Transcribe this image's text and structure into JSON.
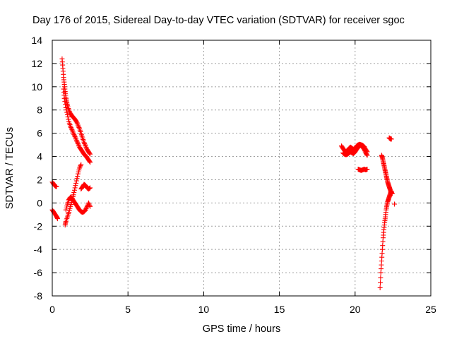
{
  "chart_data": {
    "type": "scatter",
    "title": "Day 176 of 2015, Sidereal Day-to-day VTEC variation (SDTVAR) for receiver sgoc",
    "xlabel": "GPS time / hours",
    "ylabel": "SDTVAR / TECUs",
    "xlim": [
      0,
      25
    ],
    "ylim": [
      -8,
      14
    ],
    "xticks": [
      0,
      5,
      10,
      15,
      20,
      25
    ],
    "yticks": [
      -8,
      -6,
      -4,
      -2,
      0,
      2,
      4,
      6,
      8,
      10,
      12,
      14
    ],
    "grid": true,
    "marker": "plus",
    "color": "#ff0000",
    "series": [
      {
        "name": "SDTVAR",
        "segments": [
          [
            [
              0.0,
              1.8
            ],
            [
              0.1,
              1.6
            ],
            [
              0.2,
              1.45
            ],
            [
              0.28,
              1.4
            ]
          ],
          [
            [
              0.0,
              -0.6
            ],
            [
              0.1,
              -0.8
            ],
            [
              0.2,
              -1.0
            ],
            [
              0.3,
              -1.2
            ],
            [
              0.35,
              -1.35
            ]
          ],
          [
            [
              0.65,
              12.4
            ],
            [
              0.7,
              11.6
            ],
            [
              0.75,
              10.8
            ],
            [
              0.8,
              10.2
            ],
            [
              0.85,
              9.6
            ],
            [
              0.9,
              9.1
            ],
            [
              0.95,
              8.7
            ],
            [
              1.0,
              8.4
            ],
            [
              1.1,
              8.0
            ],
            [
              1.2,
              7.7
            ],
            [
              1.3,
              7.5
            ],
            [
              1.4,
              7.35
            ],
            [
              1.5,
              7.2
            ],
            [
              1.6,
              7.0
            ],
            [
              1.7,
              6.7
            ],
            [
              1.8,
              6.4
            ],
            [
              1.9,
              6.0
            ],
            [
              2.0,
              5.6
            ],
            [
              2.1,
              5.2
            ],
            [
              2.2,
              4.9
            ],
            [
              2.3,
              4.6
            ],
            [
              2.4,
              4.4
            ],
            [
              2.5,
              4.2
            ]
          ],
          [
            [
              0.75,
              9.8
            ],
            [
              0.8,
              9.0
            ],
            [
              0.9,
              8.2
            ],
            [
              1.0,
              7.6
            ],
            [
              1.1,
              7.0
            ],
            [
              1.2,
              6.6
            ],
            [
              1.3,
              6.3
            ],
            [
              1.4,
              6.0
            ],
            [
              1.5,
              5.7
            ],
            [
              1.6,
              5.4
            ],
            [
              1.7,
              5.1
            ],
            [
              1.8,
              4.8
            ],
            [
              1.9,
              4.6
            ],
            [
              2.0,
              4.4
            ],
            [
              2.1,
              4.2
            ],
            [
              2.2,
              4.05
            ],
            [
              2.3,
              3.9
            ],
            [
              2.4,
              3.7
            ],
            [
              2.5,
              3.5
            ]
          ],
          [
            [
              0.85,
              -1.9
            ],
            [
              0.9,
              -1.6
            ],
            [
              1.0,
              -1.2
            ],
            [
              1.1,
              -0.8
            ],
            [
              1.2,
              -0.3
            ],
            [
              1.3,
              0.2
            ],
            [
              1.4,
              0.7
            ],
            [
              1.5,
              1.3
            ],
            [
              1.6,
              1.9
            ],
            [
              1.7,
              2.5
            ],
            [
              1.8,
              3.0
            ],
            [
              1.9,
              3.3
            ]
          ],
          [
            [
              0.9,
              -0.6
            ],
            [
              1.0,
              -0.1
            ],
            [
              1.1,
              0.3
            ],
            [
              1.2,
              0.5
            ],
            [
              1.3,
              0.4
            ],
            [
              1.4,
              0.2
            ],
            [
              1.5,
              0.0
            ],
            [
              1.6,
              -0.2
            ],
            [
              1.7,
              -0.4
            ],
            [
              1.8,
              -0.6
            ],
            [
              1.9,
              -0.75
            ],
            [
              2.0,
              -0.8
            ],
            [
              2.1,
              -0.75
            ],
            [
              2.2,
              -0.6
            ],
            [
              2.3,
              -0.3
            ],
            [
              2.4,
              0.0
            ],
            [
              2.5,
              -0.3
            ]
          ],
          [
            [
              1.9,
              1.2
            ],
            [
              2.0,
              1.4
            ],
            [
              2.1,
              1.6
            ],
            [
              2.2,
              1.5
            ],
            [
              2.3,
              1.3
            ],
            [
              2.4,
              1.2
            ],
            [
              2.5,
              1.3
            ]
          ],
          [
            [
              19.1,
              4.9
            ],
            [
              19.2,
              4.7
            ],
            [
              19.3,
              4.5
            ],
            [
              19.4,
              4.4
            ],
            [
              19.5,
              4.5
            ],
            [
              19.6,
              4.7
            ],
            [
              19.7,
              4.8
            ],
            [
              19.8,
              4.7
            ],
            [
              19.9,
              4.6
            ],
            [
              20.0,
              4.7
            ],
            [
              20.1,
              4.9
            ],
            [
              20.2,
              5.0
            ],
            [
              20.3,
              5.05
            ],
            [
              20.4,
              5.0
            ],
            [
              20.5,
              4.8
            ],
            [
              20.6,
              4.6
            ],
            [
              20.7,
              4.3
            ],
            [
              20.8,
              4.1
            ]
          ],
          [
            [
              19.2,
              4.3
            ],
            [
              19.3,
              4.2
            ],
            [
              19.4,
              4.15
            ],
            [
              19.5,
              4.2
            ],
            [
              19.6,
              4.3
            ],
            [
              19.7,
              4.4
            ],
            [
              19.8,
              4.3
            ],
            [
              19.9,
              4.25
            ],
            [
              20.0,
              4.4
            ],
            [
              20.1,
              4.6
            ],
            [
              20.2,
              4.8
            ],
            [
              20.3,
              4.9
            ],
            [
              20.4,
              5.0
            ],
            [
              20.5,
              4.95
            ],
            [
              20.6,
              4.85
            ],
            [
              20.7,
              4.6
            ],
            [
              20.8,
              4.4
            ]
          ],
          [
            [
              20.2,
              2.9
            ],
            [
              20.3,
              2.85
            ],
            [
              20.4,
              2.8
            ],
            [
              20.5,
              2.85
            ],
            [
              20.6,
              2.9
            ],
            [
              20.7,
              2.85
            ],
            [
              20.8,
              2.9
            ]
          ],
          [
            [
              21.65,
              -7.3
            ],
            [
              21.7,
              -6.0
            ],
            [
              21.75,
              -5.0
            ],
            [
              21.8,
              -4.0
            ],
            [
              21.85,
              -3.0
            ],
            [
              21.9,
              -2.3
            ],
            [
              21.95,
              -1.7
            ],
            [
              22.0,
              -1.2
            ],
            [
              22.05,
              -0.6
            ],
            [
              22.1,
              -0.2
            ],
            [
              22.15,
              0.1
            ],
            [
              22.2,
              0.3
            ],
            [
              22.25,
              0.5
            ],
            [
              22.3,
              0.7
            ],
            [
              22.35,
              0.9
            ],
            [
              22.4,
              1.0
            ]
          ],
          [
            [
              21.75,
              4.1
            ],
            [
              21.8,
              3.9
            ],
            [
              21.85,
              3.6
            ],
            [
              21.9,
              3.3
            ],
            [
              21.95,
              3.0
            ],
            [
              22.0,
              2.7
            ],
            [
              22.05,
              2.4
            ],
            [
              22.1,
              2.1
            ],
            [
              22.15,
              1.8
            ],
            [
              22.2,
              1.6
            ],
            [
              22.25,
              1.4
            ],
            [
              22.3,
              1.2
            ],
            [
              22.35,
              1.0
            ],
            [
              22.4,
              0.9
            ],
            [
              22.45,
              0.8
            ]
          ],
          [
            [
              22.25,
              5.6
            ],
            [
              22.3,
              5.55
            ],
            [
              22.35,
              5.5
            ],
            [
              22.4,
              5.5
            ]
          ],
          [
            [
              22.6,
              -0.1
            ]
          ]
        ]
      }
    ]
  }
}
